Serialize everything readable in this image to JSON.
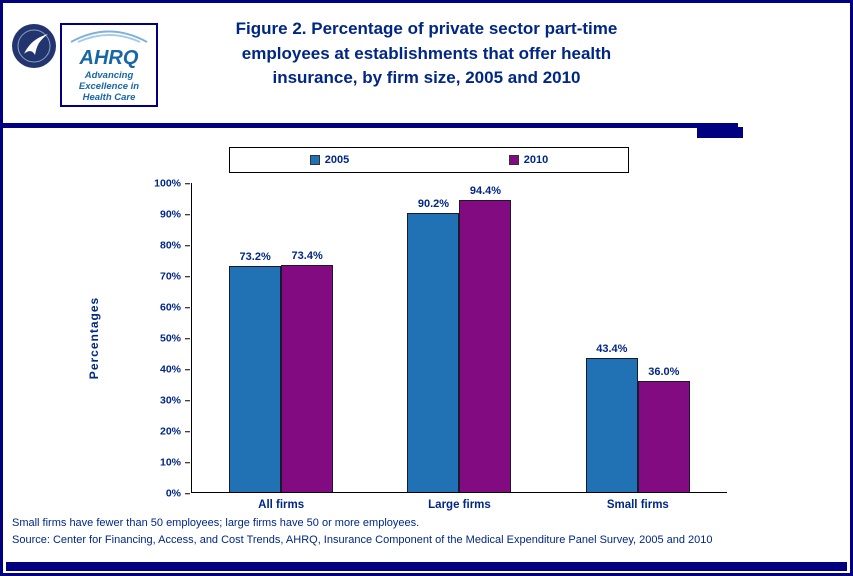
{
  "header": {
    "title": "Figure 2. Percentage of private sector part-time employees at establishments that offer health insurance, by firm size, 2005 and 2010",
    "ahrq_text": "AHRQ",
    "ahrq_tagline": "Advancing Excellence in Health Care",
    "logos": [
      "hhs-seal",
      "ahrq-logo"
    ]
  },
  "chart_data": {
    "type": "bar",
    "title": "Figure 2. Percentage of private sector part-time employees at establishments that offer health insurance, by firm size, 2005 and 2010",
    "categories": [
      "All firms",
      "Large firms",
      "Small firms"
    ],
    "series": [
      {
        "name": "2005",
        "color": "#2171B5",
        "values": [
          73.2,
          90.2,
          43.4
        ]
      },
      {
        "name": "2010",
        "color": "#820B81",
        "values": [
          73.4,
          94.4,
          36.0
        ]
      }
    ],
    "xlabel": "",
    "ylabel": "Percentages",
    "ylim": [
      0,
      100
    ],
    "y_ticks": [
      "0%",
      "10%",
      "20%",
      "30%",
      "40%",
      "50%",
      "60%",
      "70%",
      "80%",
      "90%",
      "100%"
    ],
    "grid": false,
    "legend_position": "top",
    "value_label_format": "0.0%"
  },
  "footnotes": [
    "Small firms have fewer than 50 employees; large firms have 50 or more employees.",
    "Source: Center for Financing, Access, and Cost Trends, AHRQ, Insurance Component of the Medical Expenditure Panel Survey, 2005 and 2010"
  ],
  "colors": {
    "border_navy": "#000080",
    "text_navy": "#002686",
    "bar_2005": "#2171B5",
    "bar_2010": "#820B81"
  }
}
